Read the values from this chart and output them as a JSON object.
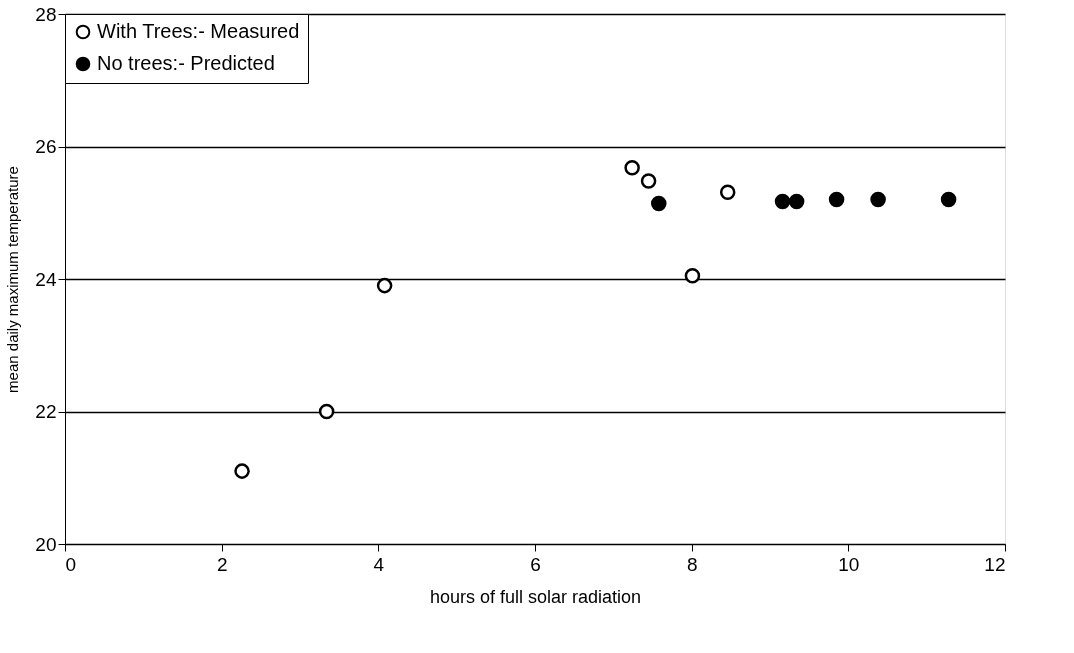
{
  "chart_data": {
    "type": "scatter",
    "xlabel": "hours of full solar radiation",
    "ylabel": "mean daily maximum temperature",
    "xlim": [
      0,
      12
    ],
    "xticks": [
      0,
      2,
      4,
      6,
      8,
      10,
      12
    ],
    "ylim": [
      20,
      28
    ],
    "yticks": [
      20,
      22,
      24,
      26,
      28
    ],
    "grid": "y",
    "legend": "top left",
    "marker": "circle",
    "series": [
      {
        "name": "With Trees:- Measured",
        "color": "#ffffff",
        "x": [
          2.26,
          3.34,
          4.08,
          7.24,
          7.45,
          8.01,
          8.46
        ],
        "values": [
          21.1,
          22.0,
          23.9,
          25.68,
          25.48,
          24.05,
          25.31
        ]
      },
      {
        "name": "No trees:- Predicted",
        "color": "#000000",
        "x": [
          7.58,
          9.16,
          9.34,
          9.85,
          10.38,
          11.28
        ],
        "values": [
          25.14,
          25.17,
          25.17,
          25.2,
          25.2,
          25.2
        ]
      }
    ]
  }
}
